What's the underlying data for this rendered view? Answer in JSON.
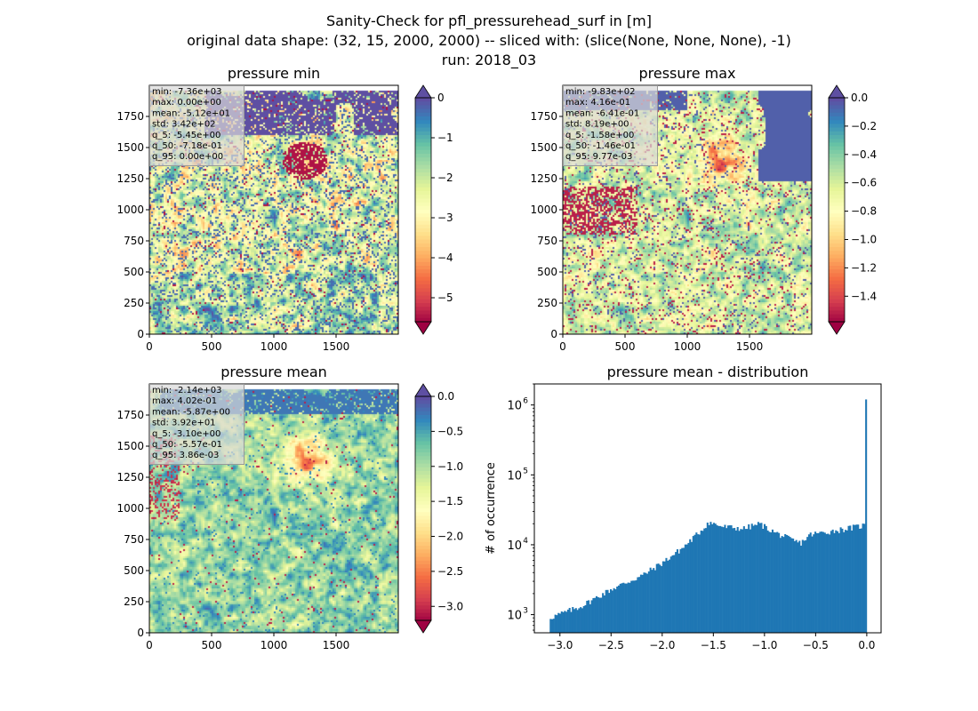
{
  "figure": {
    "title_lines": [
      "Sanity-Check for pfl_pressurehead_surf in [m]",
      "original data shape: (32, 15, 2000, 2000) -- sliced with: (slice(None, None, None), -1)",
      "run: 2018_03"
    ]
  },
  "colors": {
    "spectral": [
      "#9e0142",
      "#d53e4f",
      "#f46d43",
      "#fdae61",
      "#fee08b",
      "#ffffbf",
      "#e6f598",
      "#abdda4",
      "#66c2a5",
      "#3288bd",
      "#5e4fa2"
    ],
    "hist_bar": "#1f77b4"
  },
  "panels": [
    {
      "title": "pressure min",
      "x_ticks": [
        "0",
        "500",
        "1000",
        "1500"
      ],
      "y_ticks": [
        "0",
        "250",
        "500",
        "750",
        "1000",
        "1250",
        "1500",
        "1750"
      ],
      "colorbar": {
        "min": -5.6,
        "max": 0,
        "ticks": [
          0,
          -1,
          -2,
          -3,
          -4,
          -5
        ],
        "tick_labels": [
          "0",
          "−1",
          "−2",
          "−3",
          "−4",
          "−5"
        ],
        "extend": "both"
      },
      "stats": [
        "min: -7.36e+03",
        "max: 0.00e+00",
        "mean: -5.12e+01",
        "std: 3.42e+02",
        "q_5: -5.45e+00",
        "q_50: -7.18e-01",
        "q_95: 0.00e+00"
      ]
    },
    {
      "title": "pressure max",
      "x_ticks": [
        "0",
        "500",
        "1000",
        "1500"
      ],
      "y_ticks": [
        "0",
        "250",
        "500",
        "750",
        "1000",
        "1250",
        "1500",
        "1750"
      ],
      "colorbar": {
        "min": -1.58,
        "max": 0.0,
        "ticks": [
          0.0,
          -0.2,
          -0.4,
          -0.6,
          -0.8,
          -1.0,
          -1.2,
          -1.4
        ],
        "tick_labels": [
          "0.0",
          "−0.2",
          "−0.4",
          "−0.6",
          "−0.8",
          "−1.0",
          "−1.2",
          "−1.4"
        ],
        "extend": "both"
      },
      "stats": [
        "min: -9.83e+02",
        "max: 4.16e-01",
        "mean: -6.41e-01",
        "std: 8.19e+00",
        "q_5: -1.58e+00",
        "q_50: -1.46e-01",
        "q_95: 9.77e-03"
      ]
    },
    {
      "title": "pressure mean",
      "x_ticks": [
        "0",
        "500",
        "1000",
        "1500"
      ],
      "y_ticks": [
        "0",
        "250",
        "500",
        "750",
        "1000",
        "1250",
        "1500",
        "1750"
      ],
      "colorbar": {
        "min": -3.2,
        "max": 0.0,
        "ticks": [
          0.0,
          -0.5,
          -1.0,
          -1.5,
          -2.0,
          -2.5,
          -3.0
        ],
        "tick_labels": [
          "0.0",
          "−0.5",
          "−1.0",
          "−1.5",
          "−2.0",
          "−2.5",
          "−3.0"
        ],
        "extend": "both"
      },
      "stats": [
        "min: -2.14e+03",
        "max: 4.02e-01",
        "mean: -5.87e+00",
        "std: 3.92e+01",
        "q_5: -3.10e+00",
        "q_50: -5.57e-01",
        "q_95: 3.86e-03"
      ]
    }
  ],
  "chart_data": [
    {
      "type": "heatmap",
      "title": "pressure min",
      "xlim": [
        0,
        2000
      ],
      "ylim": [
        0,
        2000
      ],
      "colorbar_range": [
        -5.6,
        0
      ]
    },
    {
      "type": "heatmap",
      "title": "pressure max",
      "xlim": [
        0,
        2000
      ],
      "ylim": [
        0,
        2000
      ],
      "colorbar_range": [
        -1.58,
        0.0
      ]
    },
    {
      "type": "heatmap",
      "title": "pressure mean",
      "xlim": [
        0,
        2000
      ],
      "ylim": [
        0,
        2000
      ],
      "colorbar_range": [
        -3.2,
        0.0
      ]
    },
    {
      "type": "bar",
      "title": "pressure mean - distribution",
      "xlabel": "",
      "ylabel": "# of occurrence",
      "xlim": [
        -3.25,
        0.14
      ],
      "ylim": [
        550,
        2000000
      ],
      "yscale": "log",
      "x_ticks": [
        -3.0,
        -2.5,
        -2.0,
        -1.5,
        -1.0,
        -0.5,
        0.0
      ],
      "x_tick_labels": [
        "−3.0",
        "−2.5",
        "−2.0",
        "−1.5",
        "−1.0",
        "−0.5",
        "0.0"
      ],
      "y_ticks": [
        1000,
        10000,
        100000,
        1000000
      ],
      "y_tick_labels": [
        "10^3",
        "10^4",
        "10^5",
        "10^6"
      ],
      "bin_range": [
        -3.1,
        0.0
      ],
      "profile_x": [
        -3.1,
        -2.8,
        -2.5,
        -2.2,
        -2.0,
        -1.8,
        -1.6,
        -1.55,
        -1.4,
        -1.2,
        -1.05,
        -0.9,
        -0.75,
        -0.65,
        -0.55,
        -0.3,
        -0.1,
        -0.02
      ],
      "profile_y": [
        900,
        1300,
        2300,
        3600,
        5500,
        9000,
        17000,
        21000,
        18000,
        17000,
        20000,
        15000,
        12000,
        10500,
        14000,
        16000,
        18000,
        19000
      ],
      "spike": {
        "x": 0.0,
        "count": 1200000
      }
    }
  ]
}
